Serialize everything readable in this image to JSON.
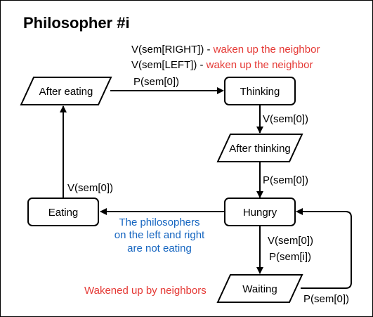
{
  "title": "Philosopher #i",
  "colors": {
    "red": "#e53935",
    "blue": "#1565c0",
    "black": "#000000",
    "border": "#000000"
  },
  "nodes": {
    "after_eating": "After eating",
    "thinking": "Thinking",
    "after_thinking": "After thinking",
    "hungry": "Hungry",
    "eating": "Eating",
    "waiting": "Waiting"
  },
  "edges": {
    "after_eating_to_thinking": {
      "line1_op": "V(sem[RIGHT]) - ",
      "line1_note": "waken up the neighbor",
      "line2_op": "V(sem[LEFT]) - ",
      "line2_note": "waken up the neighbor",
      "line3": "P(sem[0])"
    },
    "thinking_to_after_thinking": "V(sem[0])",
    "after_thinking_to_hungry": "P(sem[0])",
    "eating_to_after_eating": "V(sem[0])",
    "hungry_to_eating": [
      "The philosophers",
      "on the left and right",
      "are not eating"
    ],
    "hungry_to_waiting": [
      "V(sem[0])",
      "P(sem[i])"
    ],
    "waiting_to_hungry": "P(sem[0])",
    "waiting_note": "Wakened up by neighbors"
  }
}
